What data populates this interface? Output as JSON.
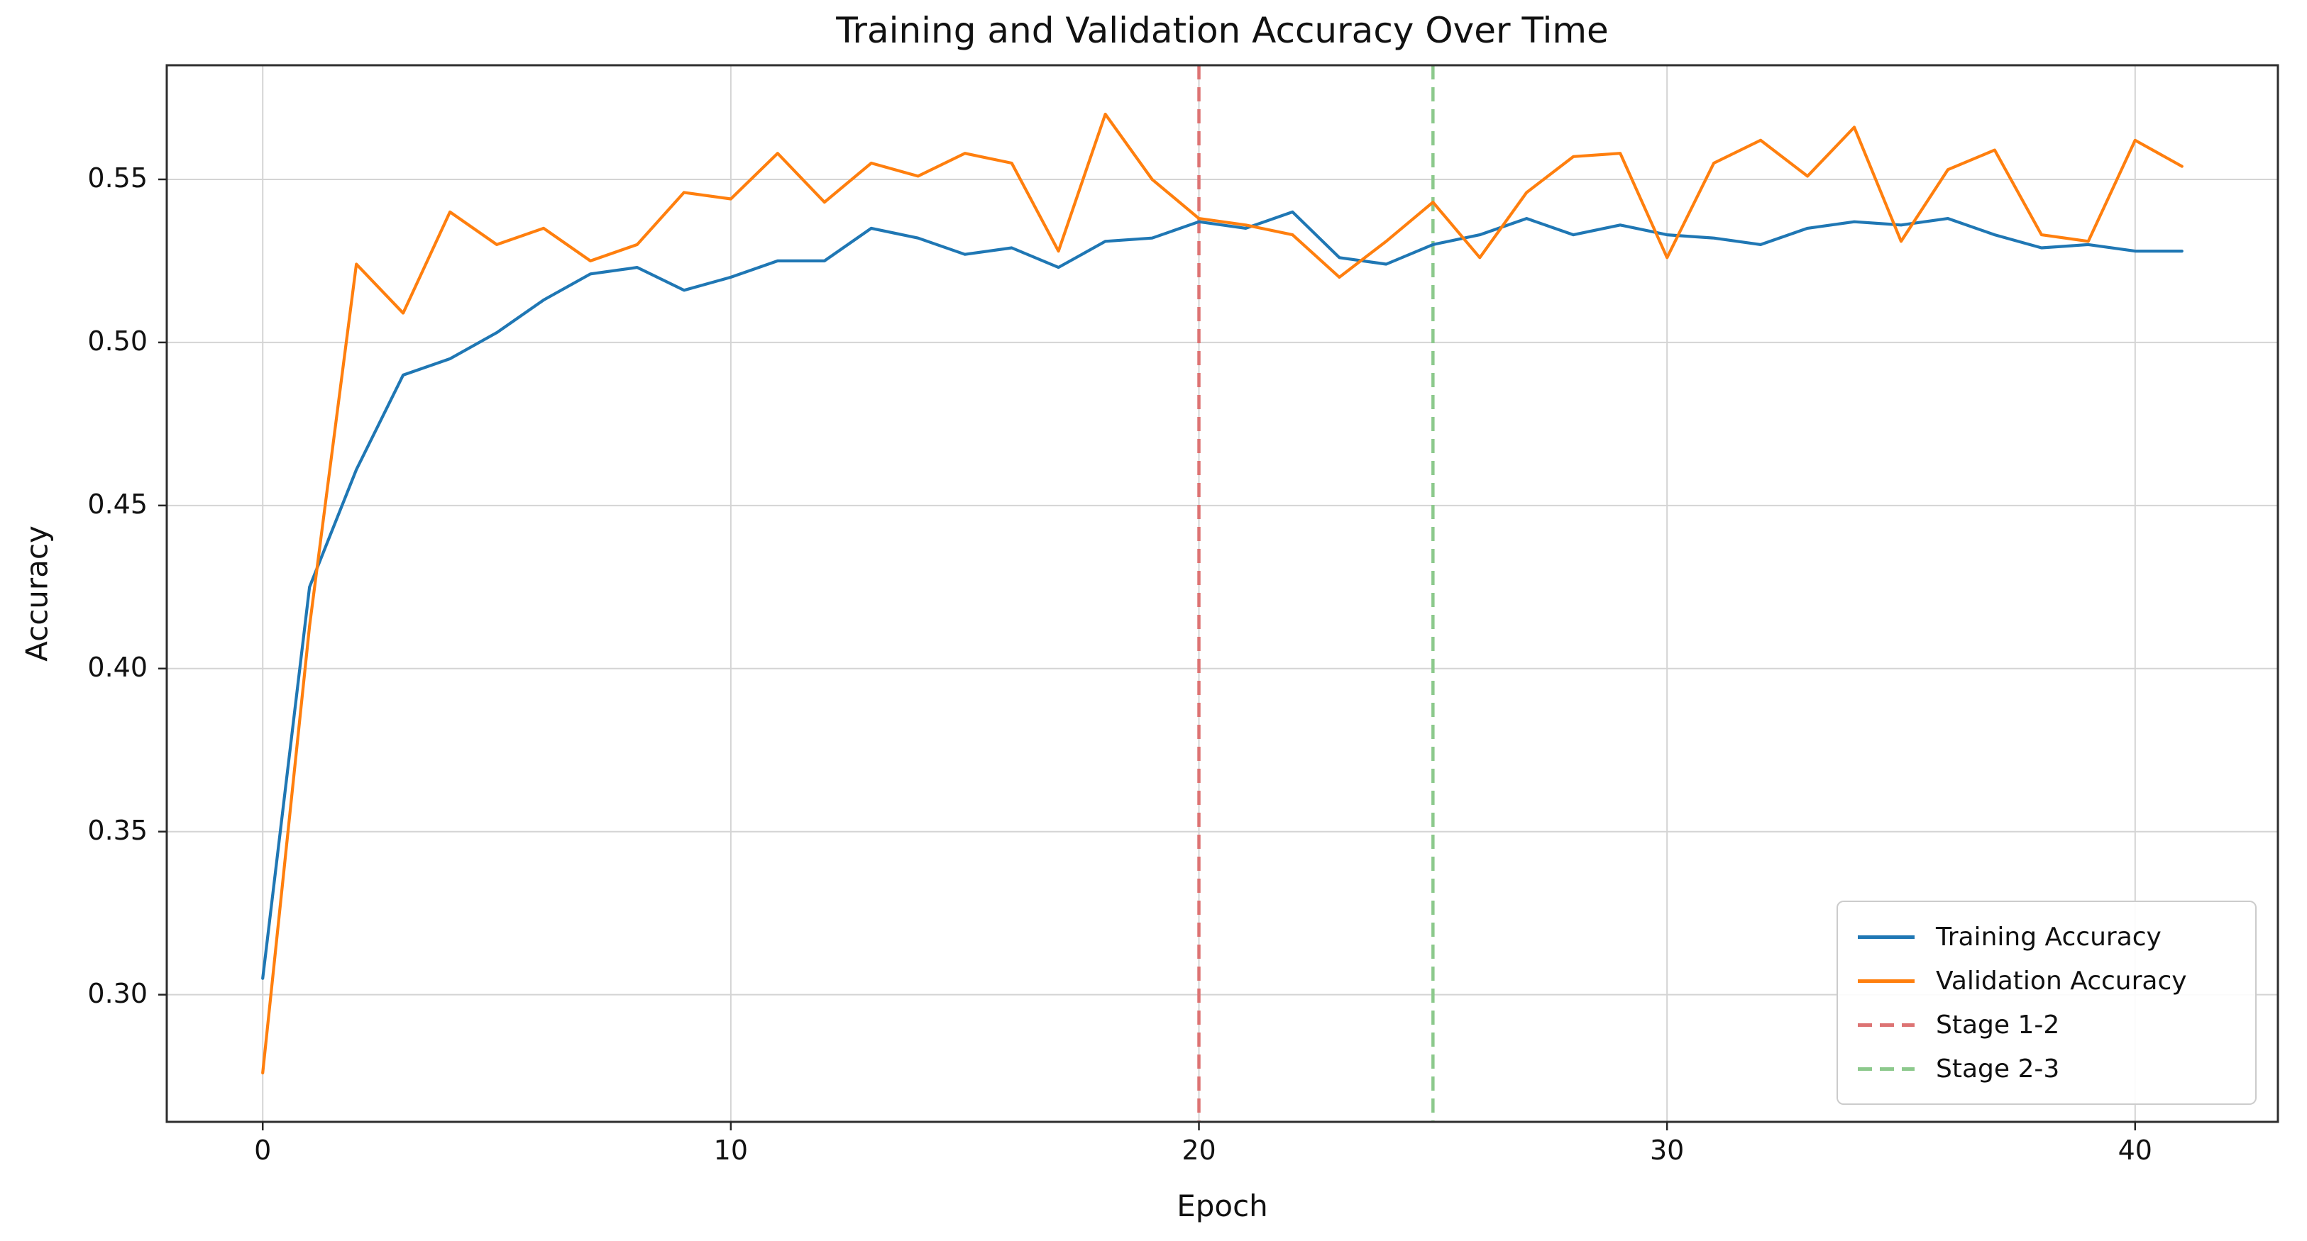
{
  "chart_data": {
    "type": "line",
    "title": "Training and Validation Accuracy Over Time",
    "xlabel": "Epoch",
    "ylabel": "Accuracy",
    "xlim": [
      -2.05,
      43.05
    ],
    "ylim": [
      0.261,
      0.585
    ],
    "grid": true,
    "legend_position": "lower right",
    "x_ticks": [
      0,
      10,
      20,
      30,
      40
    ],
    "x_tick_labels": [
      "0",
      "10",
      "20",
      "30",
      "40"
    ],
    "y_ticks": [
      0.3,
      0.35,
      0.4,
      0.45,
      0.5,
      0.55
    ],
    "y_tick_labels": [
      "0.30",
      "0.35",
      "0.40",
      "0.45",
      "0.50",
      "0.55"
    ],
    "x": [
      0,
      1,
      2,
      3,
      4,
      5,
      6,
      7,
      8,
      9,
      10,
      11,
      12,
      13,
      14,
      15,
      16,
      17,
      18,
      19,
      20,
      21,
      22,
      23,
      24,
      25,
      26,
      27,
      28,
      29,
      30,
      31,
      32,
      33,
      34,
      35,
      36,
      37,
      38,
      39,
      40,
      41
    ],
    "series": [
      {
        "name": "Training Accuracy",
        "color": "#1f77b4",
        "style": "solid",
        "values": [
          0.305,
          0.425,
          0.461,
          0.49,
          0.495,
          0.503,
          0.513,
          0.521,
          0.523,
          0.516,
          0.52,
          0.525,
          0.525,
          0.535,
          0.532,
          0.527,
          0.529,
          0.523,
          0.531,
          0.532,
          0.537,
          0.535,
          0.54,
          0.526,
          0.524,
          0.53,
          0.533,
          0.538,
          0.533,
          0.536,
          0.533,
          0.532,
          0.53,
          0.535,
          0.537,
          0.536,
          0.538,
          0.533,
          0.529,
          0.53,
          0.528,
          0.528
        ]
      },
      {
        "name": "Validation Accuracy",
        "color": "#ff7f0e",
        "style": "solid",
        "values": [
          0.276,
          0.413,
          0.524,
          0.509,
          0.54,
          0.53,
          0.535,
          0.525,
          0.53,
          0.546,
          0.544,
          0.558,
          0.543,
          0.555,
          0.551,
          0.558,
          0.555,
          0.528,
          0.57,
          0.55,
          0.538,
          0.536,
          0.533,
          0.52,
          0.531,
          0.543,
          0.526,
          0.546,
          0.557,
          0.558,
          0.526,
          0.555,
          0.562,
          0.551,
          0.566,
          0.531,
          0.553,
          0.559,
          0.533,
          0.531,
          0.562,
          0.554
        ]
      }
    ],
    "stage_lines": [
      {
        "label": "Stage 1-2",
        "x": 20,
        "color": "#dd7373",
        "style": "dashed"
      },
      {
        "label": "Stage 2-3",
        "x": 25,
        "color": "#8cc98c",
        "style": "dashed"
      }
    ],
    "legend_entries": [
      {
        "label": "Training Accuracy",
        "color": "#1f77b4",
        "dash": false
      },
      {
        "label": "Validation Accuracy",
        "color": "#ff7f0e",
        "dash": false
      },
      {
        "label": "Stage 1-2",
        "color": "#dd7373",
        "dash": true
      },
      {
        "label": "Stage 2-3",
        "color": "#8cc98c",
        "dash": true
      }
    ],
    "colors": {
      "grid": "#d4d4d4",
      "spine": "#2e2e2e",
      "tick": "#262626",
      "background": "#ffffff"
    }
  }
}
